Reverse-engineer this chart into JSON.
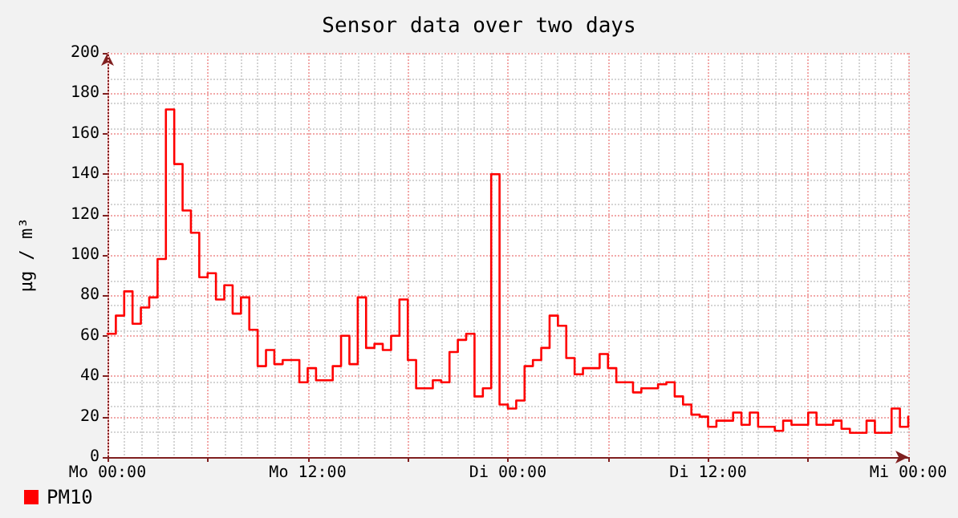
{
  "chart_data": {
    "type": "step",
    "title": "Sensor data over two days",
    "ylabel": "µg / m³",
    "categories": [
      "Mo 00:00",
      null,
      null,
      null,
      null,
      null,
      null,
      null,
      null,
      null,
      null,
      null,
      null,
      null,
      null,
      null,
      null,
      null,
      null,
      null,
      null,
      null,
      null,
      null,
      "Mo 12:00",
      null,
      null,
      null,
      null,
      null,
      null,
      null,
      null,
      null,
      null,
      null,
      null,
      null,
      null,
      null,
      null,
      null,
      null,
      null,
      null,
      null,
      null,
      null,
      "Di 00:00",
      null,
      null,
      null,
      null,
      null,
      null,
      null,
      null,
      null,
      null,
      null,
      null,
      null,
      null,
      null,
      null,
      null,
      null,
      null,
      null,
      null,
      null,
      null,
      "Di 12:00",
      null,
      null,
      null,
      null,
      null,
      null,
      null,
      null,
      null,
      null,
      null,
      null,
      null,
      null,
      null,
      null,
      null,
      null,
      null,
      null,
      null,
      null,
      null,
      "Mi 00:00"
    ],
    "ylim": [
      0,
      200
    ],
    "yticks": [
      0,
      20,
      40,
      60,
      80,
      100,
      120,
      140,
      160,
      180,
      200
    ],
    "grid": true,
    "legend": "bottom left",
    "marker": "none",
    "line_style": "solid",
    "series": [
      {
        "name": "PM10",
        "color": "#ff0000",
        "values": [
          61,
          70,
          82,
          66,
          74,
          79,
          98,
          172,
          145,
          122,
          111,
          89,
          91,
          78,
          85,
          71,
          79,
          63,
          45,
          53,
          46,
          48,
          48,
          37,
          44,
          38,
          38,
          45,
          60,
          46,
          79,
          54,
          56,
          53,
          60,
          78,
          48,
          34,
          34,
          38,
          37,
          52,
          58,
          61,
          30,
          34,
          140,
          26,
          24,
          28,
          45,
          48,
          54,
          70,
          65,
          49,
          41,
          44,
          44,
          51,
          44,
          37,
          37,
          32,
          34,
          34,
          36,
          37,
          30,
          26,
          21,
          20,
          15,
          18,
          18,
          22,
          16,
          22,
          15,
          15,
          13,
          18,
          16,
          16,
          22,
          16,
          16,
          18,
          14,
          12,
          12,
          18,
          12,
          12,
          24,
          15,
          20
        ]
      }
    ]
  }
}
